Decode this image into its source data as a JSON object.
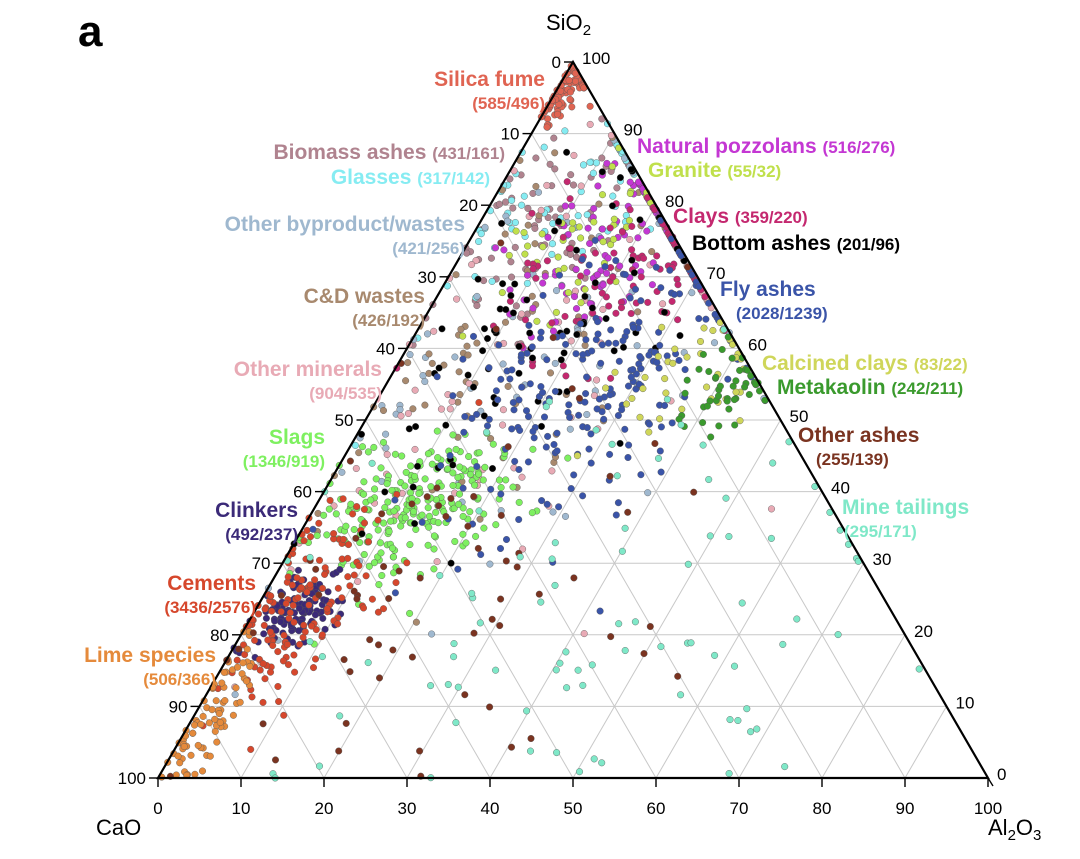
{
  "panel_label": "a",
  "chart_data": {
    "type": "scatter",
    "subtype": "ternary",
    "title": "",
    "vertices": {
      "top": {
        "text": "SiO",
        "sub": "2"
      },
      "left": {
        "text": "CaO",
        "sub": ""
      },
      "right": {
        "text": "Al",
        "sub": "2",
        "text2": "O",
        "sub2": "3"
      }
    },
    "ticks": [
      "0",
      "10",
      "20",
      "30",
      "40",
      "50",
      "60",
      "70",
      "80",
      "90",
      "100"
    ],
    "grid": true,
    "axis_range": [
      0,
      100
    ],
    "categories": [
      {
        "key": "silica_fume",
        "name": "Silica fume",
        "count": "(585/496)",
        "color": "#e06452",
        "center": [
          1,
          96
        ],
        "spread": [
          1.5,
          3
        ],
        "n": 80
      },
      {
        "key": "biomass",
        "name": "Biomass ashes",
        "count": "(431/161)",
        "color": "#b0838f",
        "center": [
          8,
          78
        ],
        "spread": [
          7,
          10
        ],
        "n": 80
      },
      {
        "key": "glasses",
        "name": "Glasses",
        "count": "(317/142)",
        "color": "#86ecf2",
        "center": [
          9,
          80
        ],
        "spread": [
          7,
          8
        ],
        "n": 70
      },
      {
        "key": "other_byproduct",
        "name": "Other byproduct/wastes",
        "count": "(421/256)",
        "color": "#9fb8cf",
        "center": [
          14,
          58
        ],
        "spread": [
          14,
          20
        ],
        "n": 80
      },
      {
        "key": "cd_wastes",
        "name": "C&D wastes",
        "count": "(426/192)",
        "color": "#a8896e",
        "center": [
          12,
          62
        ],
        "spread": [
          9,
          14
        ],
        "n": 80
      },
      {
        "key": "other_minerals",
        "name": "Other minerals",
        "count": "(904/535)",
        "color": "#e8aab5",
        "center": [
          16,
          58
        ],
        "spread": [
          14,
          18
        ],
        "n": 90
      },
      {
        "key": "slags",
        "name": "Slags",
        "count": "(1346/919)",
        "color": "#7ef060",
        "center": [
          12,
          38
        ],
        "spread": [
          5,
          5
        ],
        "n": 230
      },
      {
        "key": "clinkers",
        "name": "Clinkers",
        "count": "(492/237)",
        "color": "#3b2a78",
        "center": [
          5,
          23
        ],
        "spread": [
          2.5,
          2.5
        ],
        "n": 120
      },
      {
        "key": "cements",
        "name": "Cements",
        "count": "(3436/2576)",
        "color": "#d6472c",
        "center": [
          5,
          25
        ],
        "spread": [
          4.5,
          8
        ],
        "n": 150
      },
      {
        "key": "lime",
        "name": "Lime species",
        "count": "(506/366)",
        "color": "#e58a3b",
        "center": [
          2,
          8
        ],
        "spread": [
          2,
          6
        ],
        "n": 80
      },
      {
        "key": "pozzolans",
        "name": "Natural pozzolans",
        "count": "(516/276)",
        "color": "#c437d3",
        "center": [
          17,
          75
        ],
        "spread": [
          5,
          7
        ],
        "n": 90
      },
      {
        "key": "granite",
        "name": "Granite",
        "count": "(55/32)",
        "color": "#c0e04c",
        "center": [
          14,
          76
        ],
        "spread": [
          4,
          6
        ],
        "n": 45
      },
      {
        "key": "clays",
        "name": "Clays",
        "count": "(359/220)",
        "color": "#c4286f",
        "center": [
          22,
          72
        ],
        "spread": [
          7,
          7
        ],
        "n": 100
      },
      {
        "key": "bottom_ashes",
        "name": "Bottom ashes",
        "count": "(201/96)",
        "color": "#000000",
        "center": [
          14,
          62
        ],
        "spread": [
          8,
          12
        ],
        "n": 80
      },
      {
        "key": "fly_ashes",
        "name": "Fly ashes",
        "count": "(2028/1239)",
        "color": "#3a54a8",
        "center": [
          25,
          55
        ],
        "spread": [
          8,
          11
        ],
        "n": 220
      },
      {
        "key": "calcined_clays",
        "name": "Calcined clays",
        "count": "(83/22)",
        "color": "#cfd65a",
        "center": [
          36,
          56
        ],
        "spread": [
          5,
          5
        ],
        "n": 40
      },
      {
        "key": "metakaolin",
        "name": "Metakaolin",
        "count": "(242/211)",
        "color": "#3a9a2d",
        "center": [
          41,
          55
        ],
        "spread": [
          3,
          3
        ],
        "n": 45
      },
      {
        "key": "other_ashes",
        "name": "Other ashes",
        "count": "(255/139)",
        "color": "#7a3320",
        "center": [
          20,
          30
        ],
        "spread": [
          14,
          18
        ],
        "n": 70
      },
      {
        "key": "mine_tailings",
        "name": "Mine tailings",
        "count": "(295/171)",
        "color": "#7fe8c8",
        "center": [
          40,
          25
        ],
        "spread": [
          20,
          16
        ],
        "n": 90
      }
    ]
  }
}
